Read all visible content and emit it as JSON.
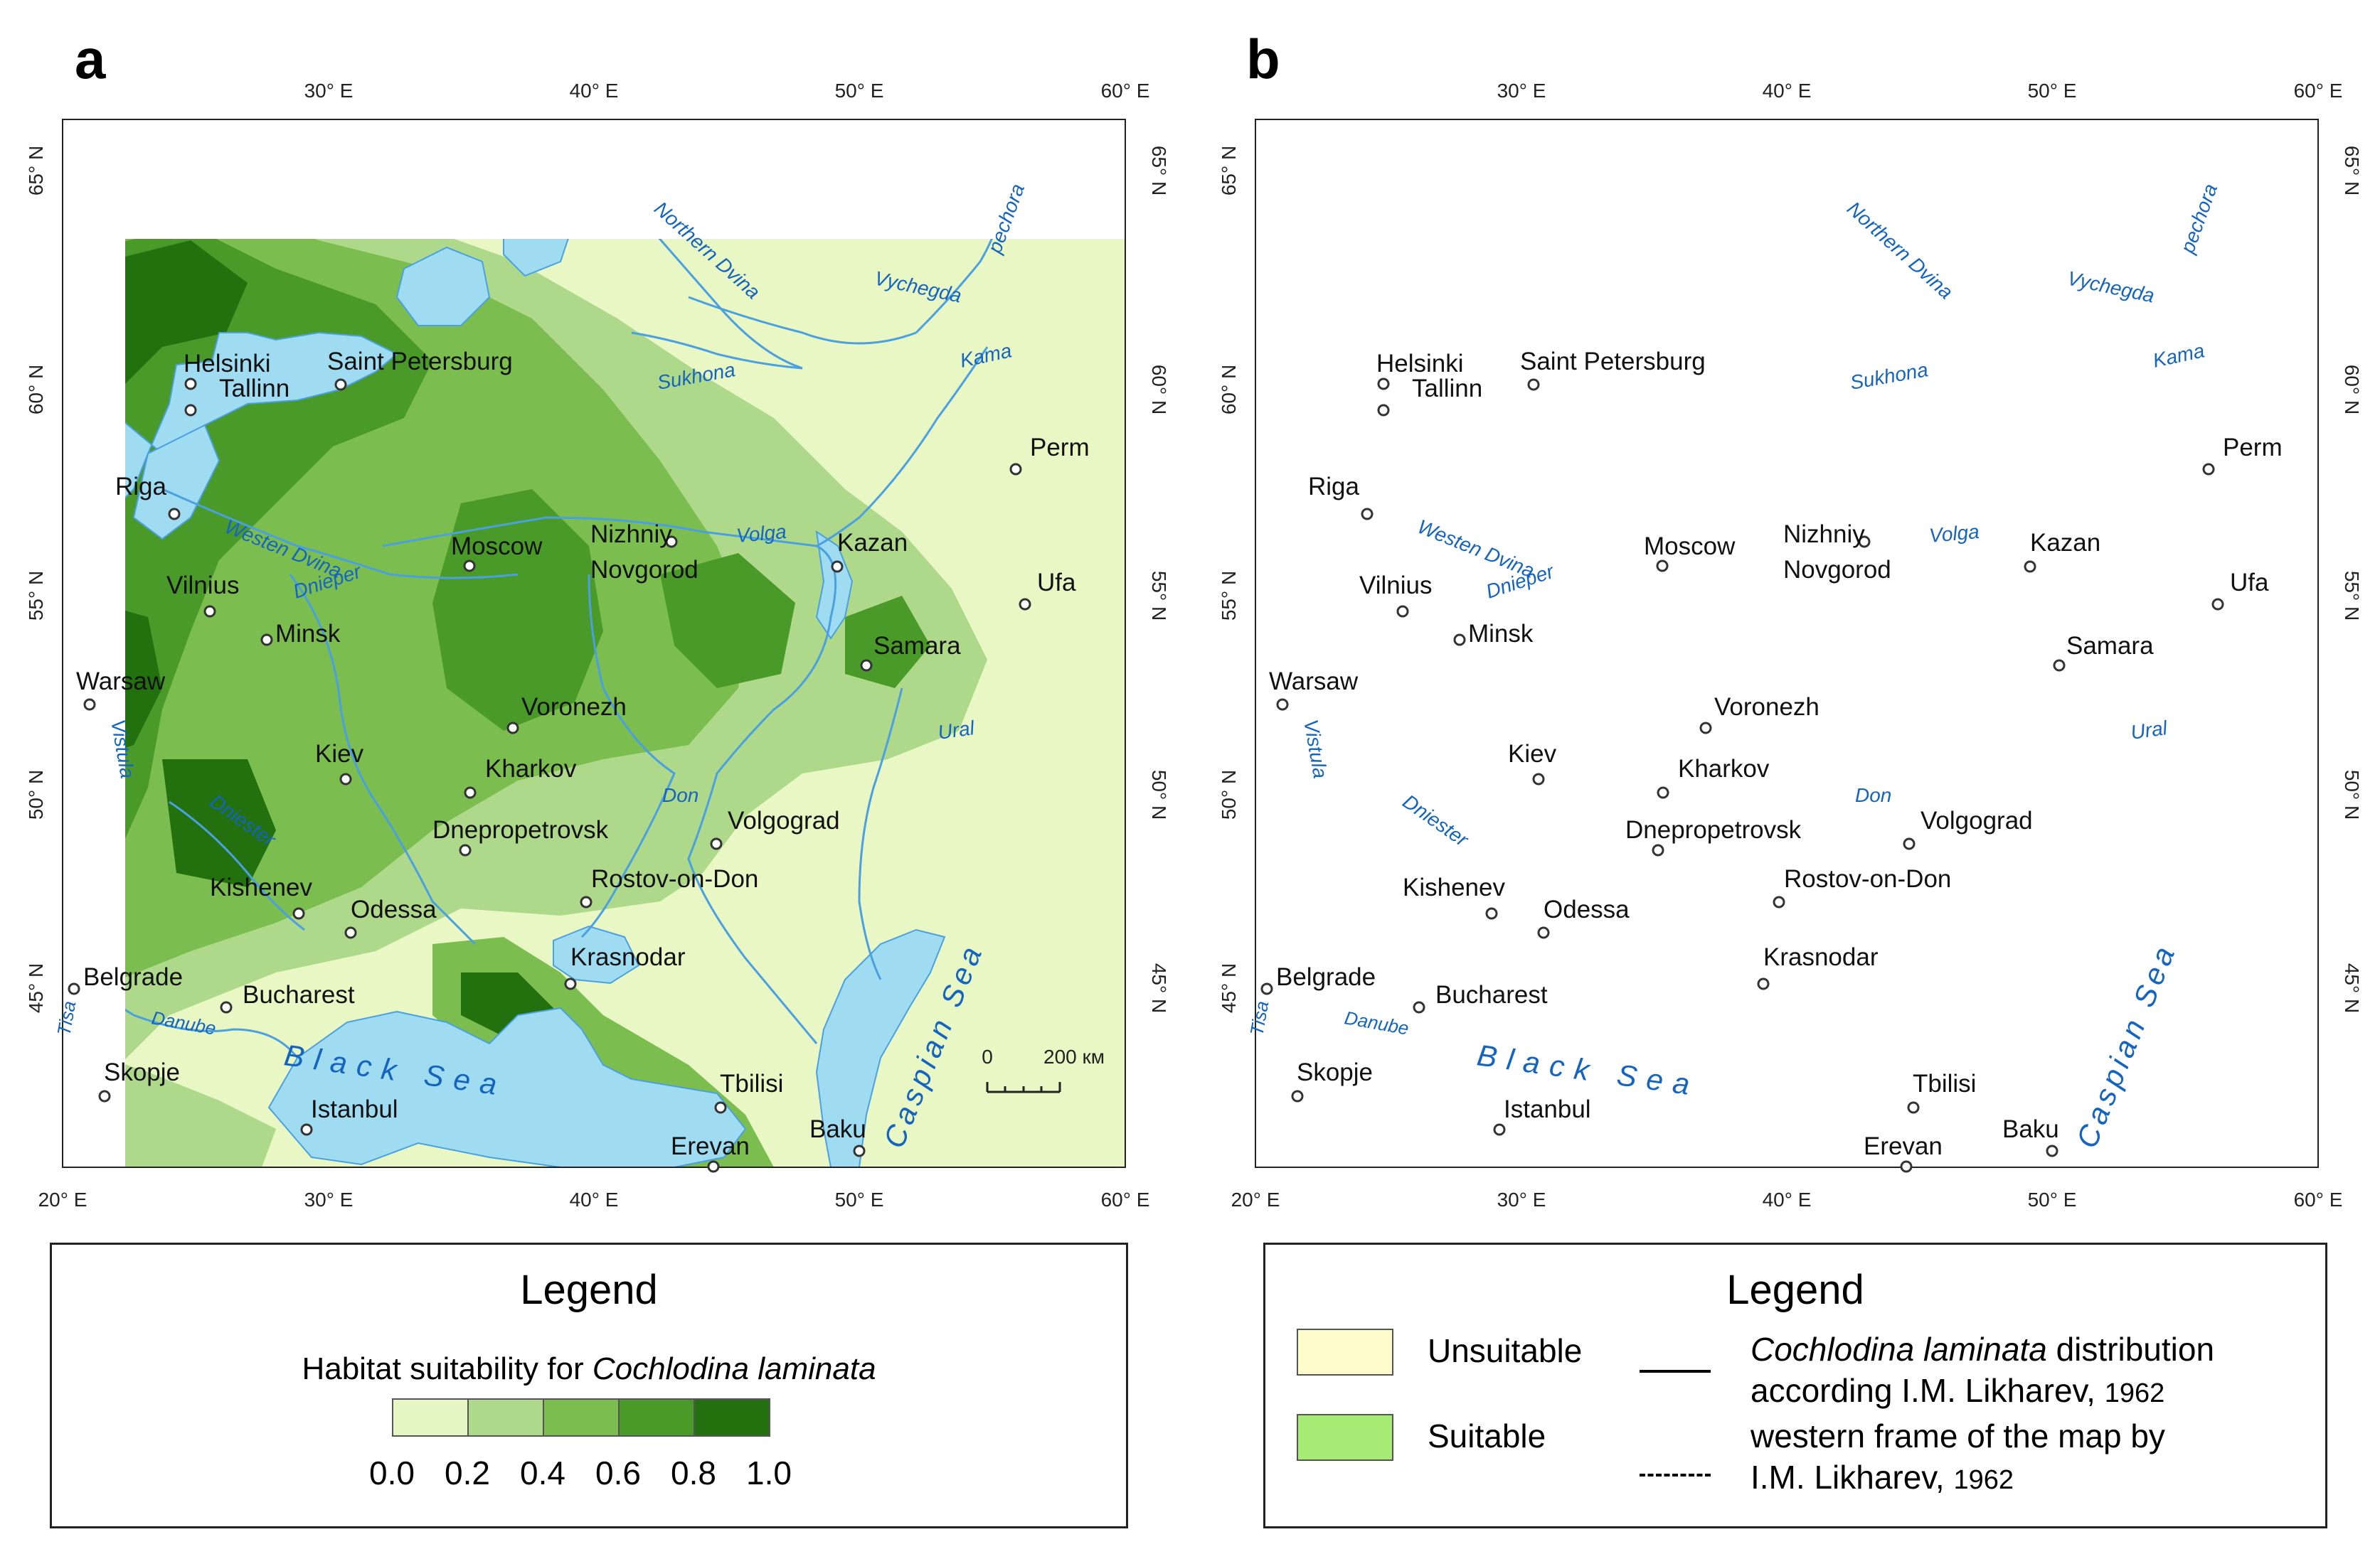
{
  "panels": [
    {
      "label": "a"
    },
    {
      "label": "b"
    }
  ],
  "axes": {
    "longitude_ticks": [
      "20° E",
      "30° E",
      "40° E",
      "50° E",
      "60° E"
    ],
    "longitude_ticks_top": [
      "30° E",
      "40° E",
      "50° E",
      "60° E"
    ],
    "latitude_ticks": [
      "65° N",
      "60° N",
      "55° N",
      "50° N",
      "45° N"
    ]
  },
  "cities": [
    {
      "name": "Helsinki"
    },
    {
      "name": "Saint Petersburg"
    },
    {
      "name": "Tallinn"
    },
    {
      "name": "Riga"
    },
    {
      "name": "Vilnius"
    },
    {
      "name": "Minsk"
    },
    {
      "name": "Warsaw"
    },
    {
      "name": "Moscow"
    },
    {
      "name": "Nizhniy"
    },
    {
      "name": "Novgorod"
    },
    {
      "name": "Kazan"
    },
    {
      "name": "Perm"
    },
    {
      "name": "Ufa"
    },
    {
      "name": "Samara"
    },
    {
      "name": "Voronezh"
    },
    {
      "name": "Kiev"
    },
    {
      "name": "Kharkov"
    },
    {
      "name": "Dnepropetrovsk"
    },
    {
      "name": "Volgograd"
    },
    {
      "name": "Kishenev"
    },
    {
      "name": "Odessa"
    },
    {
      "name": "Rostov-on-Don"
    },
    {
      "name": "Krasnodar"
    },
    {
      "name": "Belgrade"
    },
    {
      "name": "Bucharest"
    },
    {
      "name": "Skopje"
    },
    {
      "name": "Istanbul"
    },
    {
      "name": "Tbilisi"
    },
    {
      "name": "Erevan"
    },
    {
      "name": "Baku"
    }
  ],
  "water_labels": {
    "black_sea": "Black Sea",
    "caspian_sea": "Caspian Sea",
    "northern_dvina": "Northern Dvina",
    "vychegda": "Vychegda",
    "pechora": "pechora",
    "sukhona": "Sukhona",
    "kama": "Kama",
    "volga": "Volga",
    "westen_dvina": "Westen Dvina",
    "dnieper": "Dnieper",
    "vistula": "Vistula",
    "dniester": "Dniester",
    "don": "Don",
    "ural": "Ural",
    "tisa": "Tisa",
    "danube": "Danube"
  },
  "scale_bar": {
    "zero": "0",
    "distance": "200 км"
  },
  "legend_a": {
    "title": "Legend",
    "caption_prefix": "Habitat suitability for ",
    "caption_species": "Cochlodina laminata",
    "bins": [
      {
        "color": "#e6f7c6"
      },
      {
        "color": "#afd98a"
      },
      {
        "color": "#7cbd4f"
      },
      {
        "color": "#4a9a2a"
      },
      {
        "color": "#23700f"
      }
    ],
    "bin_labels": [
      "0.0",
      "0.2",
      "0.4",
      "0.6",
      "0.8",
      "1.0"
    ]
  },
  "legend_b": {
    "title": "Legend",
    "unsuitable": {
      "label": "Unsuitable",
      "color": "#fdfbc9"
    },
    "suitable": {
      "label": "Suitable",
      "color": "#a6ec74"
    },
    "distribution_species": "Cochlodina laminata",
    "distribution_suffix": " distribution",
    "distribution_line2": "according I.M. Likharev,",
    "distribution_year": "1962",
    "frame_line1": "western frame of the map by",
    "frame_line2": "I.M. Likharev,",
    "frame_year": "1962"
  },
  "colors": {
    "sea": "#9fdcf2",
    "river": "#4aa0e0",
    "bg_a": "#e8f7c4",
    "bg_b": "#fdfbc9",
    "suitable": "#a6ec74"
  }
}
